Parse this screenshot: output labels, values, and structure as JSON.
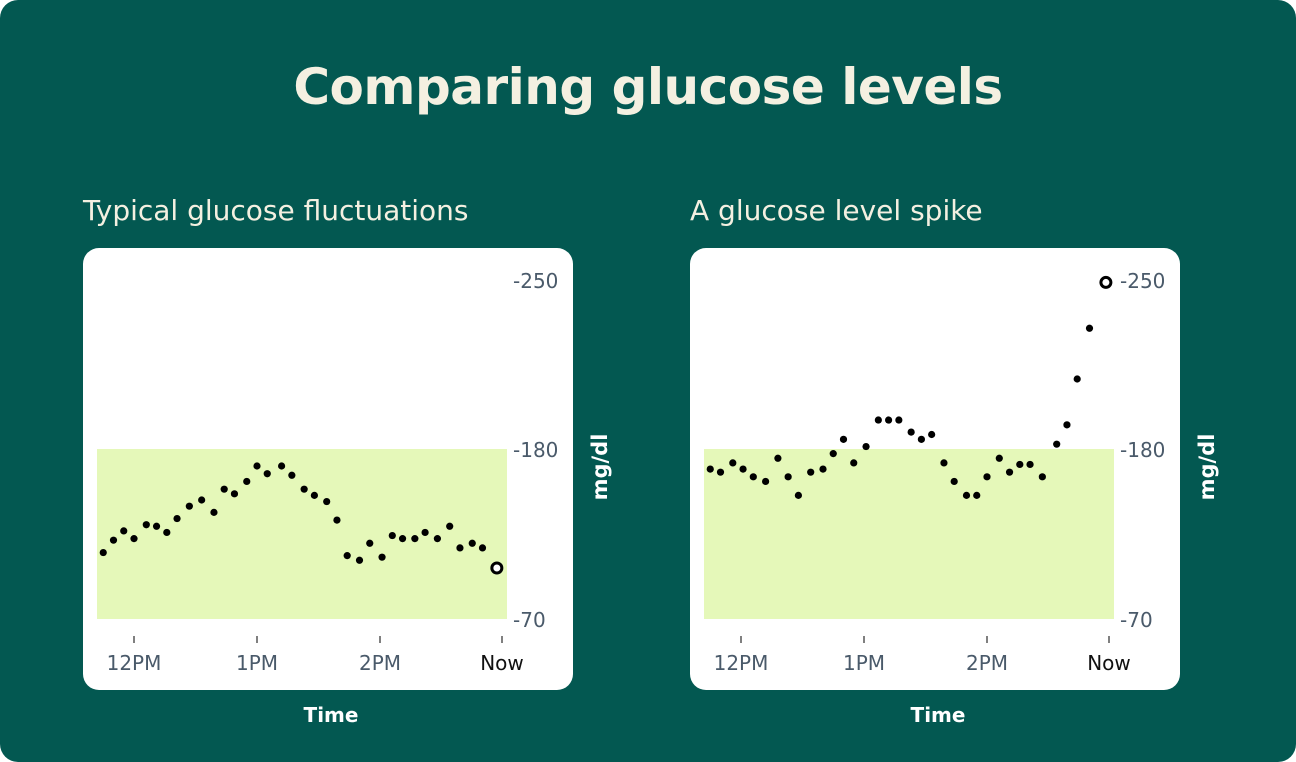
{
  "title": "Comparing glucose levels",
  "colors": {
    "background": "#035851",
    "title_text": "#f4f0e1",
    "target_band": "#e5f8b9",
    "dots": "#000000",
    "tick_text": "#4a5a6a"
  },
  "chart_data": [
    {
      "type": "scatter",
      "title": "Typical glucose fluctuations",
      "xlabel": "Time",
      "ylabel": "mg/dl",
      "x_ticks": [
        "12PM",
        "1PM",
        "2PM",
        "Now"
      ],
      "y_ticks": [
        "250",
        "180",
        "70"
      ],
      "ylim": [
        70,
        250
      ],
      "y_axis_side": "right",
      "target_range": [
        70,
        180
      ],
      "grid": false,
      "x": [
        "11:45",
        "11:50",
        "11:55",
        "12:00",
        "12:06",
        "12:11",
        "12:16",
        "12:21",
        "12:27",
        "12:33",
        "12:39",
        "12:44",
        "12:49",
        "12:55",
        "13:00",
        "13:05",
        "13:12",
        "13:17",
        "13:23",
        "13:28",
        "13:34",
        "13:39",
        "13:44",
        "13:50",
        "13:55",
        "14:01",
        "14:06",
        "14:11",
        "14:17",
        "14:22",
        "14:28",
        "14:34",
        "14:39",
        "14:45",
        "14:50",
        "14:57"
      ],
      "y": [
        113,
        121,
        127,
        122,
        131,
        130,
        126,
        135,
        143,
        147,
        139,
        154,
        151,
        159,
        169,
        164,
        169,
        163,
        154,
        150,
        146,
        134,
        111,
        108,
        119,
        110,
        124,
        122,
        122,
        126,
        122,
        130,
        116,
        119,
        116,
        103
      ],
      "current_point": "last point, open circle"
    },
    {
      "type": "scatter",
      "title": "A glucose level spike",
      "xlabel": "Time",
      "ylabel": "mg/dl",
      "x_ticks": [
        "12PM",
        "1PM",
        "2PM",
        "Now"
      ],
      "y_ticks": [
        "250",
        "180",
        "70"
      ],
      "ylim": [
        70,
        250
      ],
      "y_axis_side": "right",
      "target_range": [
        70,
        180
      ],
      "grid": false,
      "x": [
        "11:45",
        "11:50",
        "11:56",
        "12:01",
        "12:06",
        "12:12",
        "12:18",
        "12:23",
        "12:28",
        "12:34",
        "12:40",
        "12:45",
        "12:50",
        "12:55",
        "13:01",
        "13:07",
        "13:12",
        "13:17",
        "13:23",
        "13:28",
        "13:33",
        "13:39",
        "13:44",
        "13:50",
        "13:55",
        "14:00",
        "14:06",
        "14:11",
        "14:16",
        "14:21",
        "14:27",
        "14:34",
        "14:39",
        "14:44",
        "14:50",
        "14:58"
      ],
      "y": [
        167,
        165,
        171,
        167,
        162,
        159,
        174,
        162,
        150,
        165,
        167,
        177,
        184,
        171,
        181,
        192,
        192,
        192,
        187,
        184,
        186,
        171,
        159,
        150,
        150,
        162,
        174,
        165,
        170,
        170,
        162,
        182,
        190,
        209,
        230,
        249
      ],
      "current_point": "last point, open circle"
    }
  ]
}
